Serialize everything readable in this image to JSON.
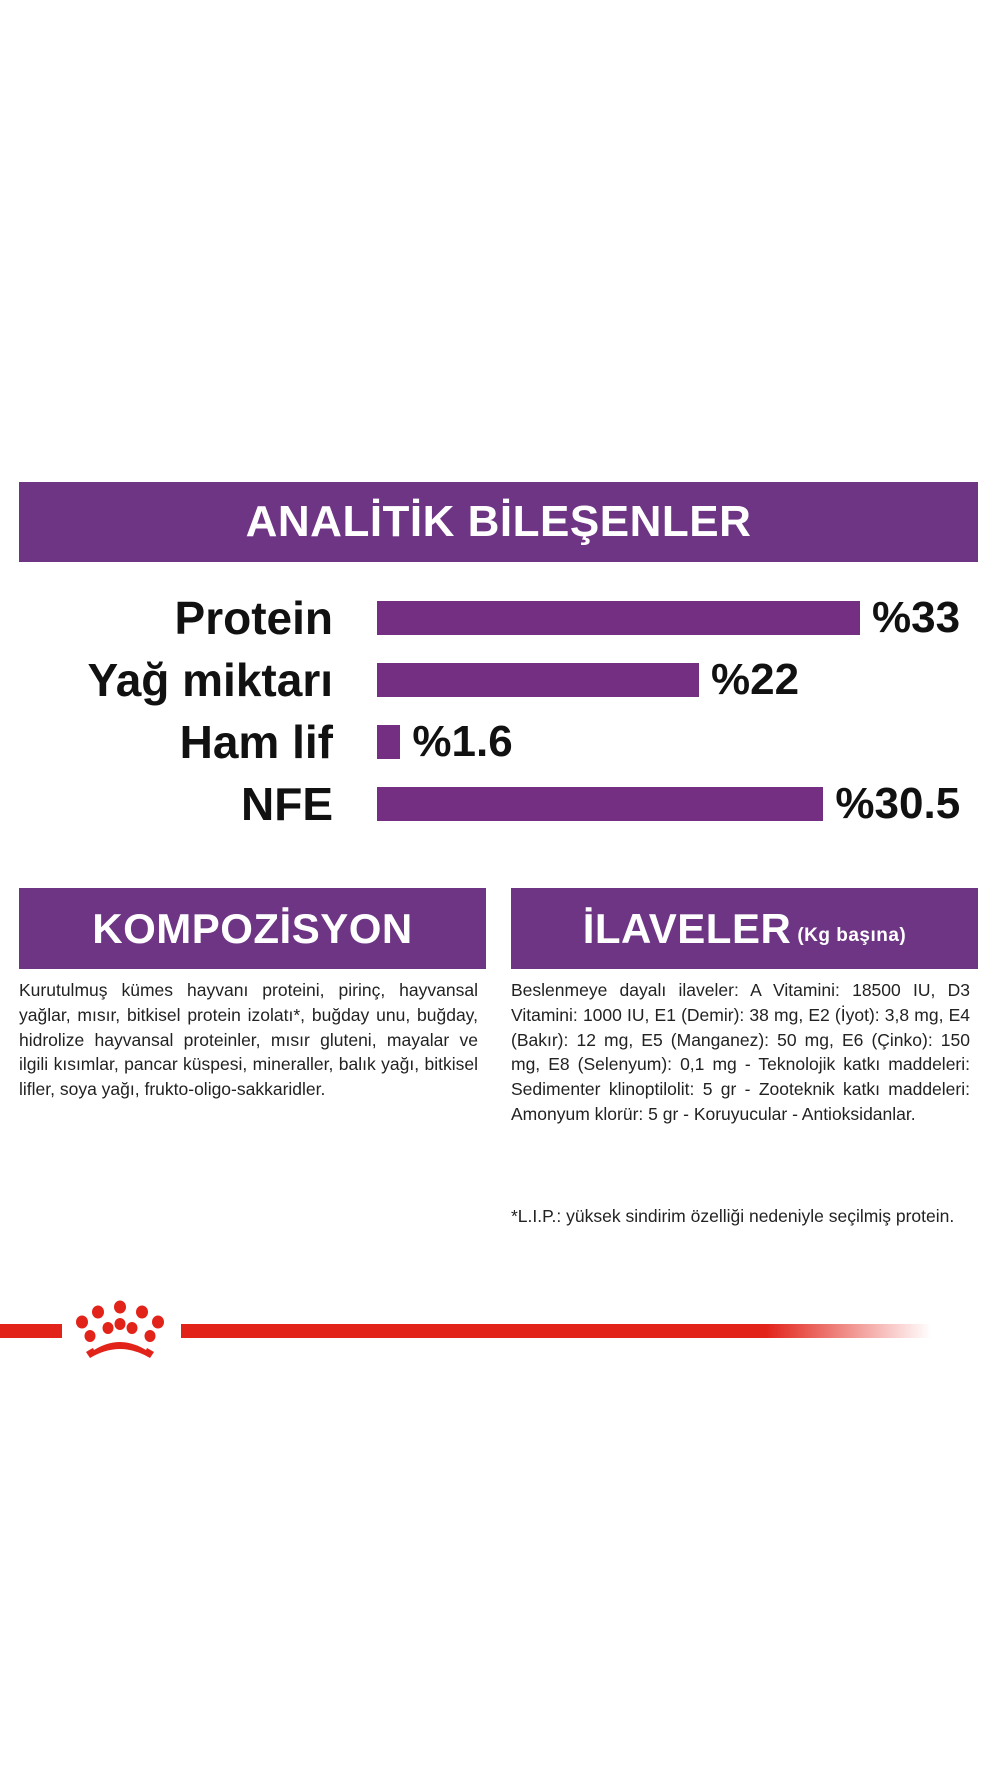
{
  "analytic": {
    "title": "ANALİTİK BİLEŞENLER",
    "rows": [
      {
        "label": "Protein",
        "value": 33,
        "value_label": "%33"
      },
      {
        "label": "Yağ miktarı",
        "value": 22,
        "value_label": "%22"
      },
      {
        "label": "Ham lif",
        "value": 1.6,
        "value_label": "%1.6"
      },
      {
        "label": "NFE",
        "value": 30.5,
        "value_label": "%30.5"
      }
    ]
  },
  "composition": {
    "title": "KOMPOZİSYON",
    "text": "Kurutulmuş kümes hayvanı proteini, pirinç, hayvansal yağlar, mısır, bitkisel protein izolatı*, buğday unu, buğday, hidrolize hayvansal proteinler, mısır gluteni, mayalar ve ilgili kısımlar, pancar küspesi, mineraller, balık yağı, bitkisel lifler, soya yağı, frukto-oligo-sakkaridler."
  },
  "additives": {
    "title": "İLAVELER",
    "subtitle": "(Kg başına)",
    "text": "Beslenmeye dayalı ilaveler: A Vitamini: 18500 IU, D3 Vitamini: 1000 IU, E1 (Demir): 38 mg, E2 (İyot): 3,8 mg, E4 (Bakır): 12 mg, E5 (Manganez): 50 mg, E6 (Çinko): 150 mg, E8 (Selenyum): 0,1 mg - Teknolojik katkı maddeleri: Sedimenter klinoptilolit: 5 gr - Zooteknik katkı maddeleri: Amonyum klorür: 5 gr - Koruyucular - Antioksidanlar.",
    "footnote": "*L.I.P.: yüksek sindirim özelliği nedeniyle seçilmiş protein."
  },
  "colors": {
    "purple": "#6f3585",
    "bar": "#742f82",
    "brand_red": "#e2231a"
  },
  "logo": {
    "icon": "royal-canin-crown-icon"
  }
}
